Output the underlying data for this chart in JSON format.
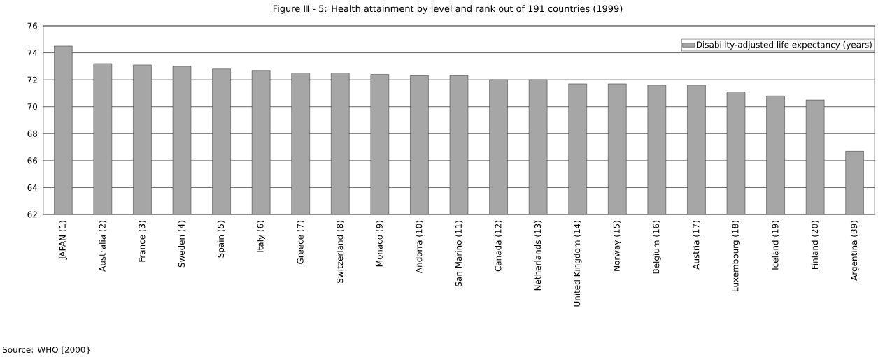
{
  "chart_data": {
    "type": "bar",
    "title": "Figure Ⅲ - 5: Health attainment by level and rank out of 191 countries (1999)",
    "categories": [
      "JAPAN (1)",
      "Australia (2)",
      "France (3)",
      "Sweden (4)",
      "Spain (5)",
      "Italy (6)",
      "Greece (7)",
      "Switzerland (8)",
      "Monaco (9)",
      "Andorra (10)",
      "San Marino (11)",
      "Canada (12)",
      "Netherlands (13)",
      "United Kingdom (14)",
      "Norway (15)",
      "Belgium (16)",
      "Austria (17)",
      "Luxembourg (18)",
      "Iceland (19)",
      "Finland (20)",
      "Argentina (39)"
    ],
    "series": [
      {
        "name": "Disability-adjusted life expectancy (years)",
        "color": "#a6a6a6",
        "values": [
          74.5,
          73.2,
          73.1,
          73.0,
          72.8,
          72.7,
          72.5,
          72.5,
          72.4,
          72.3,
          72.3,
          72.0,
          72.0,
          71.7,
          71.7,
          71.6,
          71.6,
          71.1,
          70.8,
          70.5,
          66.7
        ]
      }
    ],
    "ylim": [
      62,
      76
    ],
    "yticks": [
      62,
      64,
      66,
      68,
      70,
      72,
      74,
      76
    ],
    "grid": "y",
    "legend": "top right",
    "annotations": [
      "Source: WHO [2000}"
    ]
  }
}
